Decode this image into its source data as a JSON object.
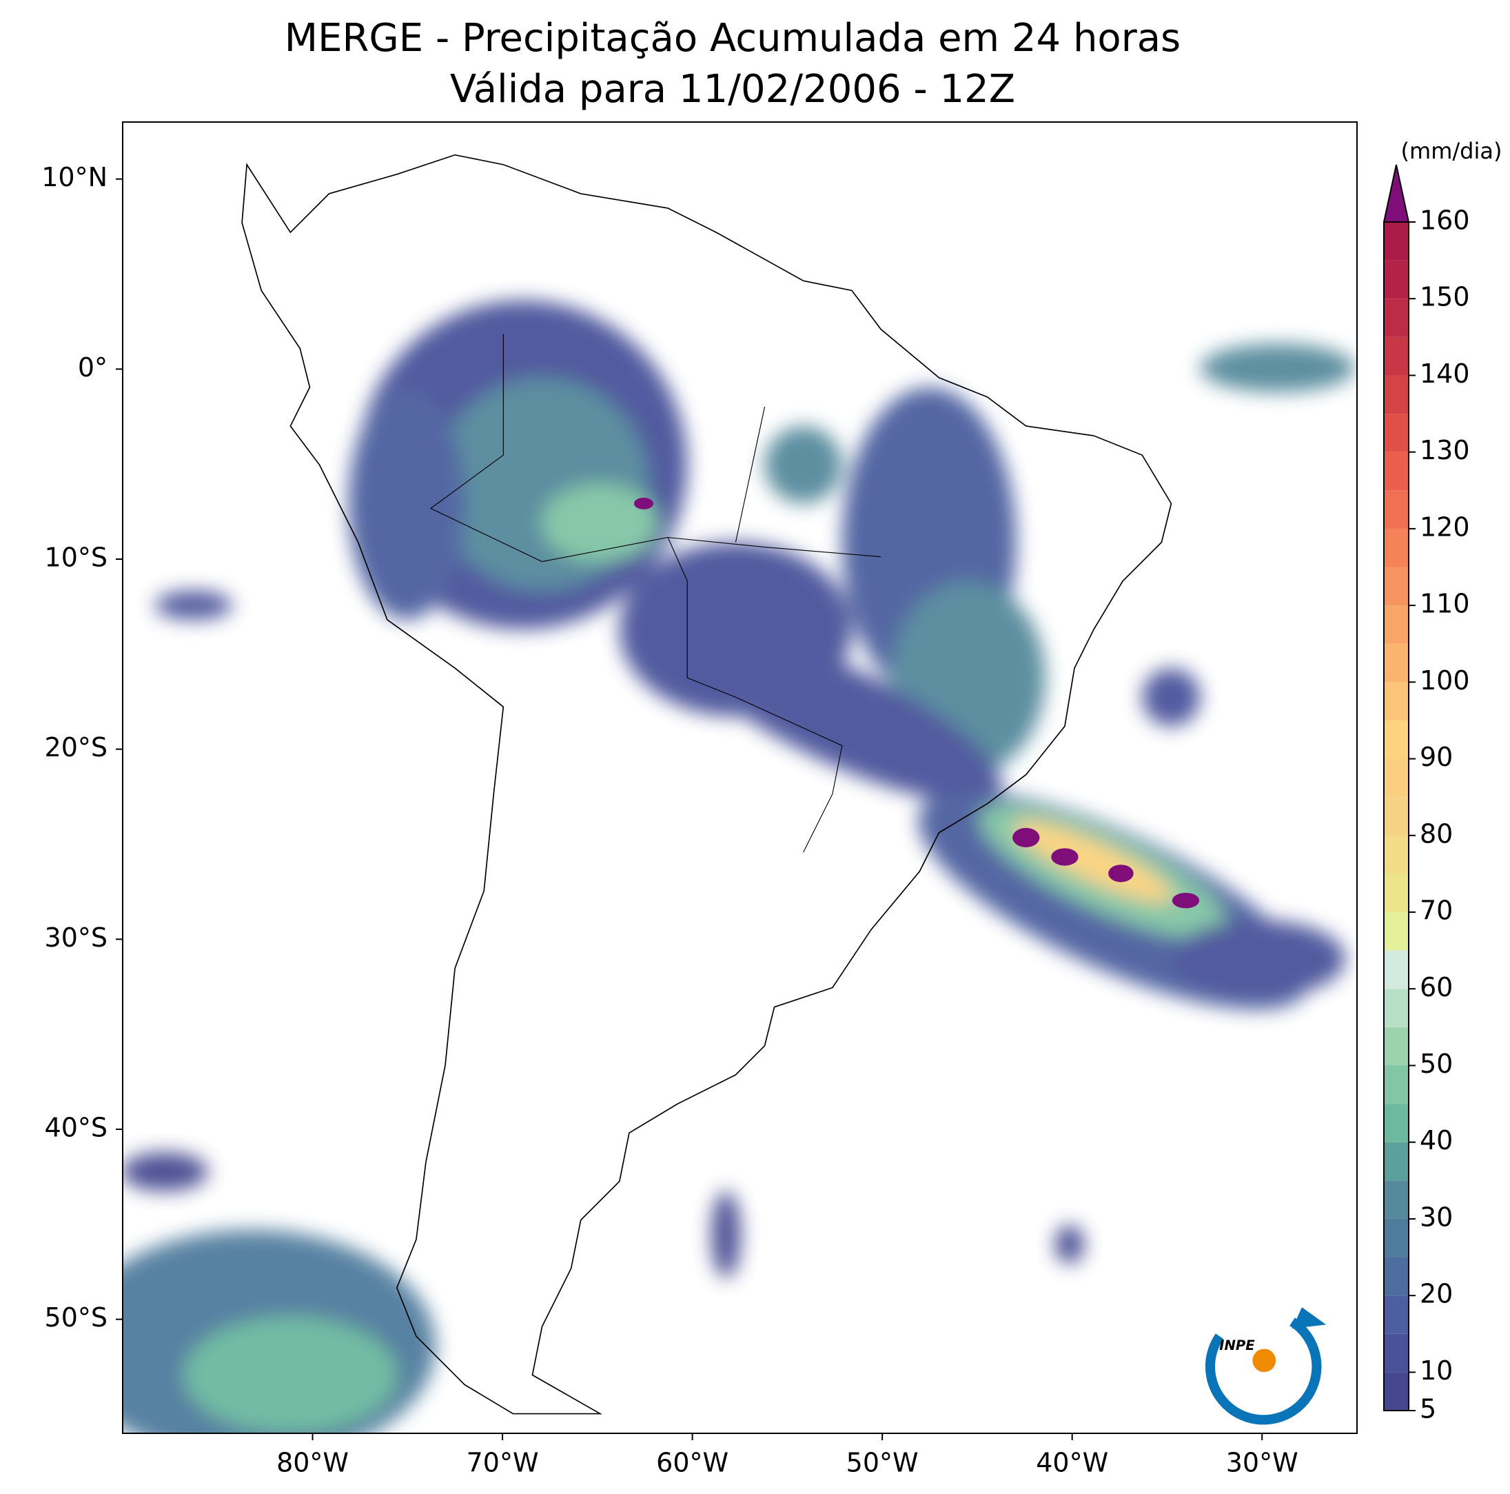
{
  "chart_data": {
    "type": "map",
    "title": "MERGE - Precipitação Acumulada em 24 horas",
    "subtitle": "Válida para 11/02/2006 - 12Z",
    "xlim": [
      -90,
      -25
    ],
    "ylim": [
      -56,
      13
    ],
    "xticks": [
      {
        "value": -80,
        "label": "80°W"
      },
      {
        "value": -70,
        "label": "70°W"
      },
      {
        "value": -60,
        "label": "60°W"
      },
      {
        "value": -50,
        "label": "50°W"
      },
      {
        "value": -40,
        "label": "40°W"
      },
      {
        "value": -30,
        "label": "30°W"
      }
    ],
    "yticks": [
      {
        "value": 10,
        "label": "10°N"
      },
      {
        "value": 0,
        "label": "0°"
      },
      {
        "value": -10,
        "label": "10°S"
      },
      {
        "value": -20,
        "label": "20°S"
      },
      {
        "value": -30,
        "label": "30°S"
      },
      {
        "value": -40,
        "label": "40°S"
      },
      {
        "value": -50,
        "label": "50°S"
      }
    ],
    "colorbar": {
      "label": "(mm/dia)",
      "levels": [
        5,
        10,
        15,
        20,
        25,
        30,
        35,
        40,
        45,
        50,
        55,
        60,
        65,
        70,
        75,
        80,
        85,
        90,
        95,
        100,
        105,
        110,
        115,
        120,
        125,
        130,
        135,
        140,
        145,
        150,
        155,
        160
      ],
      "colors": [
        "#45488f",
        "#4a529a",
        "#4c5f9f",
        "#4e6d9f",
        "#4f7b9d",
        "#55899b",
        "#5d9f9a",
        "#6cb99f",
        "#82c6a5",
        "#9cd2ad",
        "#b8e0c6",
        "#d2eadf",
        "#e4f09a",
        "#ede58a",
        "#f2dc85",
        "#f6d383",
        "#f9ce7e",
        "#fcd37e",
        "#fbc477",
        "#f9b56e",
        "#f8a567",
        "#f69460",
        "#f5835a",
        "#f17053",
        "#e95f4c",
        "#e04f48",
        "#d44346",
        "#c83745",
        "#bd2c46",
        "#b42347",
        "#ab1a48"
      ],
      "extend_color": "#7f0e7a",
      "ticks": [
        5,
        10,
        20,
        30,
        40,
        50,
        60,
        70,
        80,
        90,
        100,
        110,
        120,
        130,
        140,
        150,
        160
      ]
    },
    "logo": "INPE"
  }
}
